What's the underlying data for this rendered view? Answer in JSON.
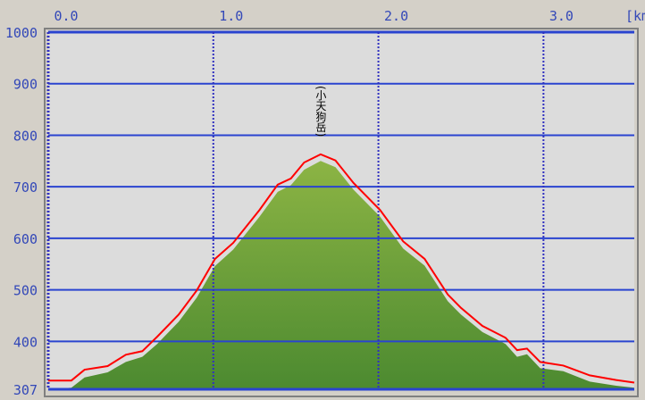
{
  "chart_data": {
    "type": "area",
    "x_unit_label": "[km]",
    "xlim": [
      0,
      3.55
    ],
    "ylim": [
      307,
      1000
    ],
    "x_ticks": [
      "0.0",
      "1.0",
      "2.0",
      "3.0"
    ],
    "y_ticks": [
      "1000",
      "900",
      "800",
      "700",
      "600",
      "500",
      "400",
      "307"
    ],
    "grid": true,
    "annotations": [
      {
        "text": "(小天狗岳)",
        "x": 1.65,
        "y": 763
      }
    ],
    "series": [
      {
        "kind": "line",
        "color": "#ff0000",
        "x": [
          0.0,
          0.14,
          0.22,
          0.36,
          0.47,
          0.57,
          0.66,
          0.79,
          0.9,
          1.01,
          1.12,
          1.28,
          1.39,
          1.47,
          1.55,
          1.65,
          1.74,
          1.85,
          2.01,
          2.15,
          2.28,
          2.42,
          2.5,
          2.63,
          2.77,
          2.84,
          2.9,
          2.98,
          3.12,
          3.28,
          3.44,
          3.55
        ],
        "y": [
          324,
          324,
          345,
          352,
          374,
          381,
          409,
          452,
          499,
          560,
          591,
          655,
          704,
          716,
          747,
          763,
          751,
          707,
          655,
          594,
          560,
          491,
          465,
          430,
          407,
          383,
          386,
          360,
          353,
          334,
          325,
          320
        ]
      },
      {
        "kind": "area",
        "color": "#6a9e38",
        "x": [
          0.0,
          0.14,
          0.22,
          0.36,
          0.47,
          0.57,
          0.66,
          0.79,
          0.9,
          1.01,
          1.12,
          1.28,
          1.39,
          1.47,
          1.55,
          1.65,
          1.74,
          1.85,
          2.01,
          2.15,
          2.28,
          2.42,
          2.5,
          2.63,
          2.77,
          2.84,
          2.9,
          2.98,
          3.12,
          3.28,
          3.44,
          3.55
        ],
        "y": [
          307,
          310,
          330,
          340,
          360,
          370,
          395,
          438,
          485,
          546,
          578,
          642,
          690,
          703,
          733,
          750,
          738,
          694,
          642,
          580,
          547,
          478,
          452,
          418,
          395,
          370,
          375,
          348,
          342,
          322,
          314,
          310
        ]
      }
    ],
    "colors": {
      "grid": "#2a44d0",
      "plot_bg": "#dcdcdc",
      "axis_text": "#3348b8"
    }
  }
}
